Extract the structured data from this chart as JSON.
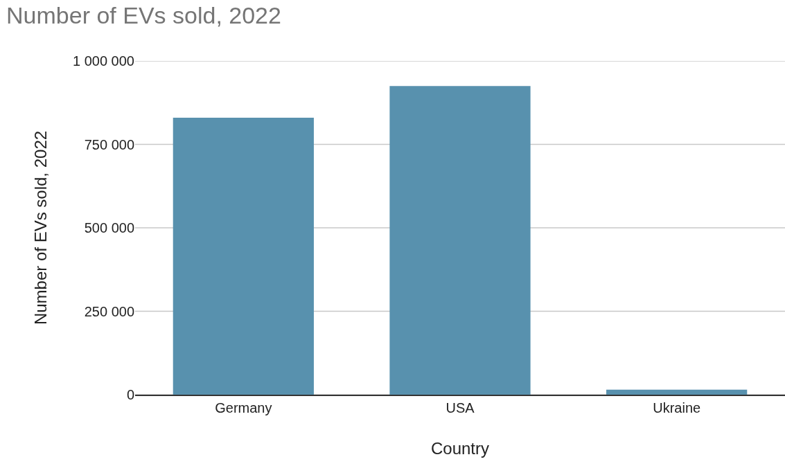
{
  "chart_data": {
    "type": "bar",
    "title": "Number of EVs sold, 2022",
    "xlabel": "Country",
    "ylabel": "Number of EVs sold, 2022",
    "categories": [
      "Germany",
      "USA",
      "Ukraine"
    ],
    "values": [
      830000,
      925000,
      15000
    ],
    "color": "#5891ae",
    "ylim": [
      0,
      1000000
    ],
    "yticks": [
      {
        "value": 0,
        "label": "0"
      },
      {
        "value": 250000,
        "label": "250 000"
      },
      {
        "value": 500000,
        "label": "500 000"
      },
      {
        "value": 750000,
        "label": "750 000"
      },
      {
        "value": 1000000,
        "label": "1 000 000"
      }
    ],
    "grid": "y"
  }
}
